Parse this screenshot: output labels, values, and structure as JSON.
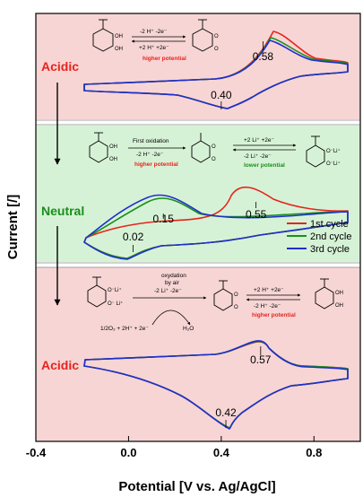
{
  "chart_data": {
    "type": "line",
    "xlabel": "Potential  [V vs. Ag/AgCl]",
    "ylabel": "Current [/]",
    "xlim": [
      -0.4,
      1.0
    ],
    "x_ticks": [
      "-0.4",
      "0.0",
      "0.4",
      "0.8"
    ],
    "legend": [
      "1st cycle",
      "2nd cycle",
      "3rd cycle"
    ],
    "legend_colors": [
      "#e8231c",
      "#1a8f1a",
      "#1f2fd0"
    ],
    "legend_placement": "right of middle panel",
    "panels": [
      {
        "label": "Acidic",
        "background": "#f7d5d5",
        "annotations": [
          "0.58",
          "0.40"
        ],
        "annotation_x": [
          0.58,
          0.4
        ],
        "reaction": {
          "forward": "-2 H⁺  -2e⁻",
          "backward": "+2 H⁺  +2e⁻",
          "note": "higher potential"
        }
      },
      {
        "label": "Neutral",
        "background": "#d6f2d6",
        "annotations": [
          "0.15",
          "0.55",
          "0.02"
        ],
        "annotation_x": [
          0.15,
          0.55,
          0.02
        ],
        "reaction": {
          "step1_title": "First oxidation",
          "step1": "-2 H⁺  -2e⁻",
          "step1_note": "higher potential",
          "step2_forward": "+2 Li⁺  +2e⁻",
          "step2_backward": "-2 Li⁺  -2e⁻",
          "step2_note": "lower potential"
        }
      },
      {
        "label": "Acidic",
        "background": "#f7d5d5",
        "annotations": [
          "0.57",
          "0.42"
        ],
        "annotation_x": [
          0.57,
          0.42
        ],
        "reaction": {
          "step1_title_line1": "oxydation",
          "step1_title_line2": "by air",
          "step1": "-2 Li⁺  -2e⁻",
          "side_reactant": "1/2O₂ + 2H⁺ + 2e⁻",
          "side_product": "H₂O",
          "step2_forward": "+2 H⁺  +2e⁻",
          "step2_backward": "-2 H⁺  -2e⁻",
          "step2_note": "higher potential"
        }
      }
    ]
  },
  "chem_labels": {
    "oh": "OH",
    "oli": "O⁻Li⁺",
    "oli_plain": "O⁻ Li⁺",
    "o": "O"
  },
  "colors": {
    "cycle1": "#e8231c",
    "cycle2": "#1a8f1a",
    "cycle3": "#1f2fd0",
    "acidic_bg": "#f7d5d5",
    "neutral_bg": "#d6f2d6"
  }
}
